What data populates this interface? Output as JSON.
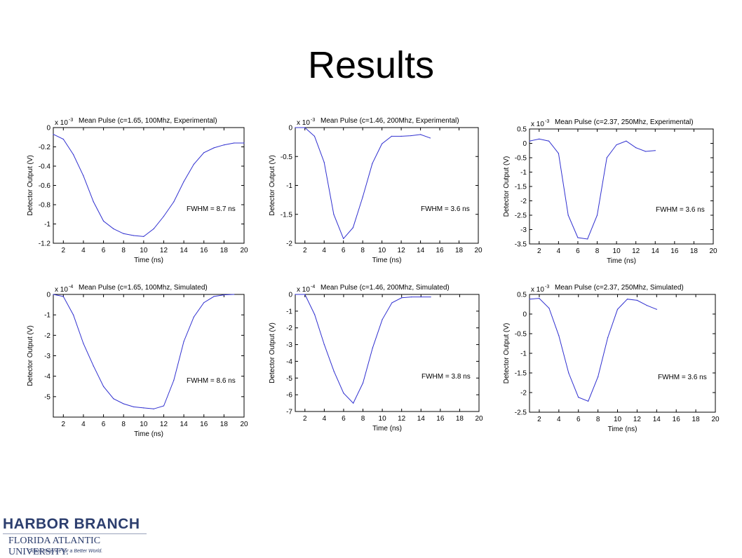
{
  "slide": {
    "title": "Results",
    "logo": {
      "line1": "HARBOR BRANCH",
      "line2": "FLORIDA ATLANTIC UNIVERSITY.",
      "line3": "Ocean Science for a Better World."
    }
  },
  "colors": {
    "line": "#3030d0",
    "axis": "#000000",
    "text": "#000000"
  },
  "chart_data": [
    {
      "type": "line",
      "title": "Mean Pulse (c=1.65, 100Mhz, Experimental)",
      "xlabel": "Time (ns)",
      "ylabel": "Detector Output (V)",
      "multiplier": "x 10",
      "exponent": "-3",
      "xlim": [
        1,
        20
      ],
      "ylim": [
        -1.2,
        0
      ],
      "xticks": [
        2,
        4,
        6,
        8,
        10,
        12,
        14,
        16,
        18,
        20
      ],
      "yticks": [
        0,
        -0.2,
        -0.4,
        -0.6,
        -0.8,
        -1,
        -1.2
      ],
      "ytick_labels": [
        "0",
        "-0.2",
        "-0.4",
        "-0.6",
        "-0.8",
        "-1",
        "-1.2"
      ],
      "annotation": "FWHM = 8.7 ns",
      "x": [
        1,
        2,
        3,
        4,
        5,
        6,
        7,
        8,
        9,
        10,
        11,
        12,
        13,
        14,
        15,
        16,
        17,
        18,
        19,
        20
      ],
      "y": [
        -0.07,
        -0.12,
        -0.28,
        -0.5,
        -0.77,
        -0.97,
        -1.05,
        -1.1,
        -1.12,
        -1.13,
        -1.05,
        -0.92,
        -0.77,
        -0.56,
        -0.38,
        -0.26,
        -0.21,
        -0.18,
        -0.16,
        -0.16
      ]
    },
    {
      "type": "line",
      "title": "Mean Pulse (c=1.46, 200Mhz, Experimental)",
      "xlabel": "Time (ns)",
      "ylabel": "Detector Output (V)",
      "multiplier": "x 10",
      "exponent": "-3",
      "xlim": [
        1,
        20
      ],
      "ylim": [
        -2,
        0
      ],
      "xticks": [
        2,
        4,
        6,
        8,
        10,
        12,
        14,
        16,
        18,
        20
      ],
      "yticks": [
        0,
        -0.5,
        -1,
        -1.5,
        -2
      ],
      "ytick_labels": [
        "0",
        "-0.5",
        "-1",
        "-1.5",
        "-2"
      ],
      "annotation": "FWHM = 3.6 ns",
      "x": [
        1,
        2,
        3,
        4,
        5,
        6,
        7,
        8,
        9,
        10,
        11,
        12,
        13,
        14,
        15
      ],
      "y": [
        0,
        0,
        -0.15,
        -0.6,
        -1.5,
        -1.92,
        -1.73,
        -1.2,
        -0.62,
        -0.28,
        -0.15,
        -0.15,
        -0.14,
        -0.12,
        -0.18
      ]
    },
    {
      "type": "line",
      "title": "Mean Pulse (c=2.37, 250Mhz, Experimental)",
      "xlabel": "Time (ns)",
      "ylabel": "Detector Output (V)",
      "multiplier": "x 10",
      "exponent": "-3",
      "xlim": [
        1,
        20
      ],
      "ylim": [
        -3.5,
        0.5
      ],
      "xticks": [
        2,
        4,
        6,
        8,
        10,
        12,
        14,
        16,
        18,
        20
      ],
      "yticks": [
        0.5,
        0,
        -0.5,
        -1,
        -1.5,
        -2,
        -2.5,
        -3,
        -3.5
      ],
      "ytick_labels": [
        "0.5",
        "0",
        "-0.5",
        "-1",
        "-1.5",
        "-2",
        "-2.5",
        "-3",
        "-3.5"
      ],
      "annotation": "FWHM = 3.6 ns",
      "x": [
        1,
        2,
        3,
        4,
        5,
        6,
        7,
        8,
        9,
        10,
        11,
        12,
        13,
        14
      ],
      "y": [
        0.08,
        0.15,
        0.08,
        -0.35,
        -2.5,
        -3.28,
        -3.33,
        -2.5,
        -0.5,
        -0.05,
        0.08,
        -0.15,
        -0.28,
        -0.25
      ]
    },
    {
      "type": "line",
      "title": "Mean Pulse (c=1.65, 100Mhz, Simulated)",
      "xlabel": "Time (ns)",
      "ylabel": "Detector Output (V)",
      "multiplier": "x 10",
      "exponent": "-4",
      "xlim": [
        1,
        20
      ],
      "ylim": [
        -6,
        0
      ],
      "xticks": [
        2,
        4,
        6,
        8,
        10,
        12,
        14,
        16,
        18,
        20
      ],
      "yticks": [
        0,
        -1,
        -2,
        -3,
        -4,
        -5
      ],
      "ytick_labels": [
        "0",
        "-1",
        "-2",
        "-3",
        "-4",
        "-5"
      ],
      "annotation": "FWHM = 8.6 ns",
      "x": [
        1,
        2,
        3,
        4,
        5,
        6,
        7,
        8,
        9,
        10,
        11,
        12,
        13,
        14,
        15,
        16,
        17,
        18,
        19
      ],
      "y": [
        0,
        -0.1,
        -1.0,
        -2.4,
        -3.5,
        -4.5,
        -5.1,
        -5.35,
        -5.5,
        -5.55,
        -5.6,
        -5.45,
        -4.2,
        -2.3,
        -1.1,
        -0.4,
        -0.1,
        -0.02,
        0
      ]
    },
    {
      "type": "line",
      "title": "Mean Pulse (c=1.46, 200Mhz, Simulated)",
      "xlabel": "Time (ns)",
      "ylabel": "Detector Output (V)",
      "multiplier": "x 10",
      "exponent": "-4",
      "xlim": [
        1,
        20
      ],
      "ylim": [
        -7,
        0
      ],
      "xticks": [
        2,
        4,
        6,
        8,
        10,
        12,
        14,
        16,
        18,
        20
      ],
      "yticks": [
        0,
        -1,
        -2,
        -3,
        -4,
        -5,
        -6,
        -7
      ],
      "ytick_labels": [
        "0",
        "-1",
        "-2",
        "-3",
        "-4",
        "-5",
        "-6",
        "-7"
      ],
      "annotation": "FWHM = 3.8 ns",
      "x": [
        1,
        2,
        3,
        4,
        5,
        6,
        7,
        8,
        9,
        10,
        11,
        12,
        13,
        14,
        15
      ],
      "y": [
        0,
        0,
        -1.2,
        -3.0,
        -4.6,
        -5.9,
        -6.5,
        -5.3,
        -3.2,
        -1.5,
        -0.5,
        -0.2,
        -0.15,
        -0.15,
        -0.15
      ]
    },
    {
      "type": "line",
      "title": "Mean Pulse (c=2.37, 250Mhz, Simulated)",
      "xlabel": "Time (ns)",
      "ylabel": "Detector Output (V)",
      "multiplier": "x 10",
      "exponent": "-3",
      "xlim": [
        1,
        20
      ],
      "ylim": [
        -2.5,
        0.5
      ],
      "xticks": [
        2,
        4,
        6,
        8,
        10,
        12,
        14,
        16,
        18,
        20
      ],
      "yticks": [
        0.5,
        0,
        -0.5,
        -1,
        -1.5,
        -2,
        -2.5
      ],
      "ytick_labels": [
        "0.5",
        "0",
        "-0.5",
        "-1",
        "-1.5",
        "-2",
        "-2.5"
      ],
      "annotation": "FWHM = 3.6 ns",
      "x": [
        1,
        2,
        3,
        4,
        5,
        6,
        7,
        8,
        9,
        10,
        11,
        12,
        13,
        14
      ],
      "y": [
        0.38,
        0.4,
        0.15,
        -0.55,
        -1.5,
        -2.12,
        -2.22,
        -1.6,
        -0.6,
        0.12,
        0.38,
        0.35,
        0.22,
        0.12
      ]
    }
  ]
}
